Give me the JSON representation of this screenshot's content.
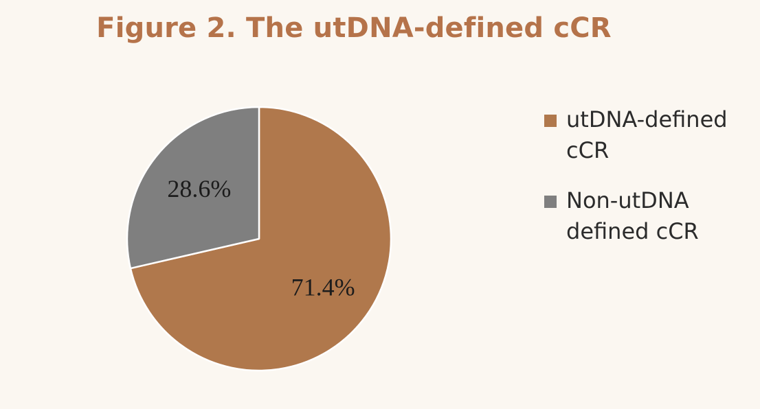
{
  "chart_data": {
    "type": "pie",
    "title": "Figure 2. The utDNA-defined cCR",
    "slices": [
      {
        "label": "utDNA-defined cCR",
        "value": 71.4,
        "display": "71.4%",
        "color": "#b0784c"
      },
      {
        "label": "Non-utDNA defined cCR",
        "value": 28.6,
        "display": "28.6%",
        "color": "#7f7f7f"
      }
    ],
    "legend": {
      "placement": "right",
      "items": [
        {
          "line1": "utDNA-defined",
          "line2": "cCR",
          "color": "#b0784c"
        },
        {
          "line1": "Non-utDNA",
          "line2": "defined cCR",
          "color": "#7f7f7f"
        }
      ]
    },
    "start_angle_deg": 0,
    "direction": "clockwise"
  },
  "colors": {
    "background": "#fbf7f1",
    "title": "#b5734a"
  }
}
